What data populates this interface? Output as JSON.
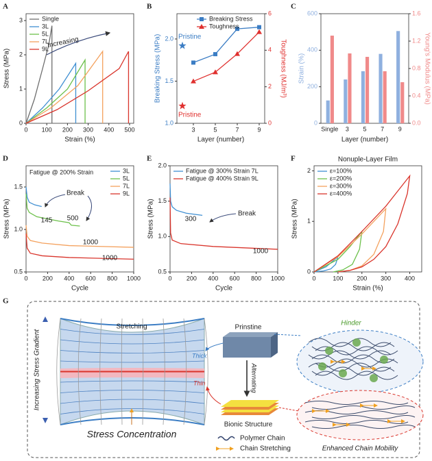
{
  "chart_data": [
    {
      "type": "line",
      "panel": "A",
      "xlabel": "Strain (%)",
      "ylabel": "Stress (MPa)",
      "xlim": [
        0,
        520
      ],
      "xticks": [
        0,
        100,
        200,
        300,
        400,
        500
      ],
      "ylim": [
        0,
        3.2
      ],
      "yticks": [
        0,
        1,
        2,
        3
      ],
      "legend": "upper left",
      "annotations": [
        "Increasing"
      ],
      "series": [
        {
          "name": "Single",
          "color": "#6e6e6e",
          "x": [
            0,
            40,
            80,
            110,
            125,
            125
          ],
          "values": [
            0,
            0.7,
            1.6,
            2.3,
            2.85,
            0
          ]
        },
        {
          "name": "3L",
          "color": "#3f8fd2",
          "x": [
            0,
            80,
            160,
            240,
            240
          ],
          "values": [
            0,
            0.45,
            1.0,
            1.75,
            0
          ]
        },
        {
          "name": "5L",
          "color": "#6cc04a",
          "x": [
            0,
            100,
            200,
            285,
            285
          ],
          "values": [
            0,
            0.45,
            1.0,
            1.85,
            0
          ]
        },
        {
          "name": "7L",
          "color": "#f4a15d",
          "x": [
            0,
            120,
            250,
            370,
            370
          ],
          "values": [
            0,
            0.45,
            1.1,
            2.1,
            0
          ]
        },
        {
          "name": "9L",
          "color": "#d9342b",
          "x": [
            0,
            150,
            300,
            450,
            495,
            495
          ],
          "values": [
            0,
            0.4,
            0.95,
            1.6,
            2.1,
            0
          ]
        }
      ]
    },
    {
      "type": "line",
      "panel": "B",
      "xlabel": "Layer (number)",
      "ylabel": "Breaking Stress (MPa)",
      "y2label": "Toughness (MJ/m³)",
      "xlim": [
        1.5,
        9.5
      ],
      "xticks": [
        3,
        5,
        7,
        9
      ],
      "ylim": [
        1.0,
        2.3
      ],
      "yticks": [
        {
          "value": 1,
          "label": "1.0"
        },
        1.5,
        {
          "value": 2,
          "label": "2.0"
        }
      ],
      "y2lim": [
        0,
        6
      ],
      "y2ticks": [
        0,
        2,
        4,
        6
      ],
      "legend": "upper right",
      "series": [
        {
          "name": "Breaking Stress",
          "color": "#3b7dc4",
          "marker": "square",
          "x": [
            3,
            5,
            7,
            9
          ],
          "values": [
            1.72,
            1.82,
            2.12,
            2.14
          ]
        },
        {
          "name": "Toughness",
          "color": "#e0312f",
          "marker": "triangle",
          "axis": "y2",
          "x": [
            3,
            5,
            7,
            9
          ],
          "values": [
            2.3,
            2.8,
            3.8,
            5.0
          ]
        }
      ],
      "highlights": [
        {
          "label": "Pristine",
          "x": 2,
          "value": 1.92,
          "color": "#3b7dc4"
        },
        {
          "label": "Pristine",
          "x": 2,
          "value": 0.95,
          "color": "#e0312f",
          "axis": "y2"
        }
      ]
    },
    {
      "type": "bar",
      "panel": "C",
      "xlabel": "Layer (number)",
      "ylabel": "Strain (%)",
      "y2label": "Young's Modulus (MPa)",
      "categories": [
        "Single",
        "3",
        "5",
        "7",
        "9"
      ],
      "ylim": [
        0,
        600
      ],
      "yticks": [
        0,
        200,
        400,
        600
      ],
      "y2lim": [
        0,
        1.6
      ],
      "y2ticks": [
        {
          "value": 0,
          "label": "0.0"
        },
        0.4,
        0.8,
        1.2,
        1.6
      ],
      "series": [
        {
          "color": "#8fb0df",
          "values": [
            125,
            240,
            285,
            380,
            505
          ]
        },
        {
          "color": "#f08a8a",
          "axis": "y2",
          "values": [
            1.28,
            1.02,
            0.97,
            0.76,
            0.6
          ]
        }
      ]
    },
    {
      "type": "line",
      "panel": "D",
      "subtitle": "Fatigue @ 200% Strain",
      "xlabel": "Cycle",
      "ylabel": "Stress (MPa)",
      "xlim": [
        0,
        1000
      ],
      "xticks": [
        0,
        200,
        400,
        600,
        800,
        1000
      ],
      "ylim": [
        0.5,
        1.75
      ],
      "yticks": [
        0.5,
        {
          "value": 1,
          "label": "1.0"
        },
        1.5
      ],
      "legend": "upper right",
      "annotations": [
        "Break",
        "145",
        "500",
        "1000",
        "1000"
      ],
      "series": [
        {
          "name": "3L",
          "color": "#3f8fd2",
          "x": [
            0,
            10,
            30,
            80,
            145
          ],
          "values": [
            1.5,
            1.38,
            1.32,
            1.29,
            1.27
          ]
        },
        {
          "name": "5L",
          "color": "#6cc04a",
          "x": [
            0,
            10,
            30,
            100,
            300,
            400,
            420,
            500
          ],
          "values": [
            1.42,
            1.25,
            1.2,
            1.15,
            1.1,
            1.08,
            1.05,
            1.04
          ]
        },
        {
          "name": "7L",
          "color": "#f4a15d",
          "x": [
            0,
            10,
            40,
            150,
            400,
            1000
          ],
          "values": [
            1.05,
            0.92,
            0.87,
            0.84,
            0.81,
            0.79
          ]
        },
        {
          "name": "9L",
          "color": "#d9342b",
          "x": [
            0,
            10,
            40,
            150,
            400,
            1000
          ],
          "values": [
            0.95,
            0.78,
            0.72,
            0.69,
            0.67,
            0.65
          ]
        }
      ]
    },
    {
      "type": "line",
      "panel": "E",
      "xlabel": "Cycle",
      "ylabel": "Stress (MPa)",
      "xlim": [
        0,
        1000
      ],
      "xticks": [
        0,
        200,
        400,
        600,
        800,
        1000
      ],
      "ylim": [
        0.5,
        2.0
      ],
      "yticks": [
        0.5,
        {
          "value": 1,
          "label": "1.0"
        },
        1.5,
        {
          "value": 2,
          "label": "2.0"
        }
      ],
      "legend": "upper left",
      "annotations": [
        "300",
        "Break",
        "1000"
      ],
      "series": [
        {
          "name": "Fatigue @ 300% Strain 7L",
          "color": "#3f8fd2",
          "x": [
            0,
            5,
            20,
            60,
            150,
            300
          ],
          "values": [
            1.75,
            1.5,
            1.42,
            1.37,
            1.33,
            1.3
          ]
        },
        {
          "name": "Fatigue @ 400% Strain 9L",
          "color": "#d9342b",
          "x": [
            0,
            5,
            20,
            100,
            400,
            1000
          ],
          "values": [
            1.55,
            1.05,
            0.95,
            0.9,
            0.86,
            0.82
          ]
        }
      ]
    },
    {
      "type": "line",
      "panel": "F",
      "title": "Nonuple-Layer Film",
      "xlabel": "Strain (%)",
      "ylabel": "Stress (MPa)",
      "xlim": [
        0,
        450
      ],
      "xticks": [
        0,
        100,
        200,
        300,
        400
      ],
      "ylim": [
        0,
        2.1
      ],
      "yticks": [
        0,
        1,
        2
      ],
      "legend": "upper left",
      "series": [
        {
          "name": "ε=100%",
          "color": "#3f8fd2",
          "x": [
            0,
            50,
            100,
            90,
            70,
            40,
            0
          ],
          "values": [
            0,
            0.1,
            0.3,
            0.15,
            0.06,
            0.02,
            0
          ]
        },
        {
          "name": "ε=200%",
          "color": "#6cc04a",
          "x": [
            0,
            100,
            150,
            200,
            190,
            160,
            120,
            80
          ],
          "values": [
            0,
            0.25,
            0.5,
            0.8,
            0.45,
            0.15,
            0.04,
            0
          ]
        },
        {
          "name": "ε=300%",
          "color": "#f4a15d",
          "x": [
            0,
            100,
            200,
            250,
            300,
            290,
            250,
            200,
            150,
            100
          ],
          "values": [
            0,
            0.3,
            0.75,
            1.0,
            1.25,
            0.8,
            0.35,
            0.12,
            0.03,
            0
          ]
        },
        {
          "name": "ε=400%",
          "color": "#d9342b",
          "x": [
            0,
            100,
            200,
            300,
            350,
            400,
            390,
            350,
            300,
            250,
            200,
            150,
            100
          ],
          "values": [
            0,
            0.32,
            0.8,
            1.3,
            1.6,
            1.9,
            1.55,
            0.95,
            0.5,
            0.25,
            0.1,
            0.03,
            0
          ]
        }
      ]
    }
  ],
  "diagram": {
    "panel": "G",
    "stretching": "Stretching",
    "gradient": "Increasing Stress Gradient",
    "thick": "Thick",
    "thin": "Thin",
    "concentration": "Stress Concentration",
    "pristine": "Prinstine",
    "alternating": "Alternating",
    "bionic": "Bionic Structure",
    "polymer_chain": "Polymer Chain",
    "chain_stretching": "Chain Stretching",
    "hinder": "Hinder",
    "mobility": "Enhanced Chain Mobility"
  }
}
